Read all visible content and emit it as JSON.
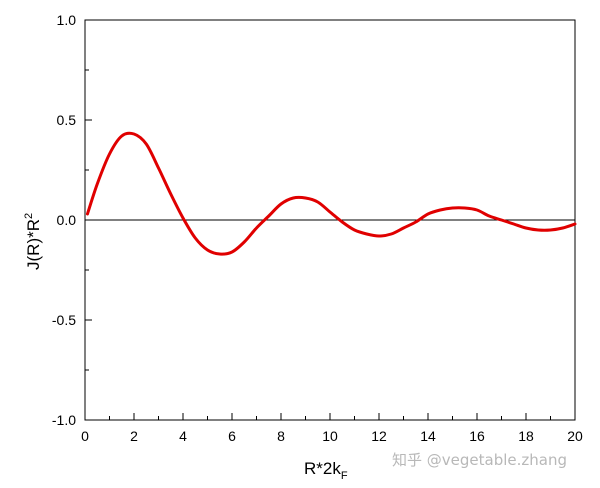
{
  "chart_data": {
    "type": "line",
    "xlim": [
      0,
      20
    ],
    "ylim": [
      -1.0,
      1.0
    ],
    "x_ticks": [
      "0",
      "2",
      "4",
      "6",
      "8",
      "10",
      "12",
      "14",
      "16",
      "18",
      "20"
    ],
    "x_tick_values": [
      0,
      2,
      4,
      6,
      8,
      10,
      12,
      14,
      16,
      18,
      20
    ],
    "y_ticks": [
      "1.0",
      "0.5",
      "0.0",
      "-0.5",
      "-1.0"
    ],
    "y_tick_values": [
      1.0,
      0.5,
      0.0,
      -0.5,
      -1.0
    ],
    "xlabel": {
      "main": "R*2k",
      "sub": "F"
    },
    "ylabel": {
      "main": "J(R)*R",
      "sup": "2"
    },
    "zero_line": true,
    "grid": false,
    "series": [
      {
        "color": "#e00000",
        "x": [
          0.1,
          0.5,
          1.0,
          1.5,
          2.0,
          2.5,
          3.0,
          3.5,
          4.0,
          4.5,
          5.0,
          5.5,
          6.0,
          6.5,
          7.0,
          7.5,
          8.0,
          8.5,
          9.0,
          9.5,
          10.0,
          10.5,
          11.0,
          11.5,
          12.0,
          12.5,
          13.0,
          13.5,
          14.0,
          14.5,
          15.0,
          15.5,
          16.0,
          16.5,
          17.0,
          17.5,
          18.0,
          18.5,
          19.0,
          19.5,
          20.0
        ],
        "y": [
          0.03,
          0.18,
          0.33,
          0.42,
          0.43,
          0.38,
          0.26,
          0.13,
          0.01,
          -0.09,
          -0.15,
          -0.17,
          -0.16,
          -0.11,
          -0.04,
          0.02,
          0.08,
          0.11,
          0.11,
          0.09,
          0.04,
          -0.01,
          -0.05,
          -0.07,
          -0.08,
          -0.07,
          -0.04,
          -0.01,
          0.03,
          0.05,
          0.06,
          0.06,
          0.05,
          0.02,
          0.0,
          -0.02,
          -0.04,
          -0.05,
          -0.05,
          -0.04,
          -0.02
        ]
      }
    ]
  },
  "watermark": "知乎 @vegetable.zhang"
}
